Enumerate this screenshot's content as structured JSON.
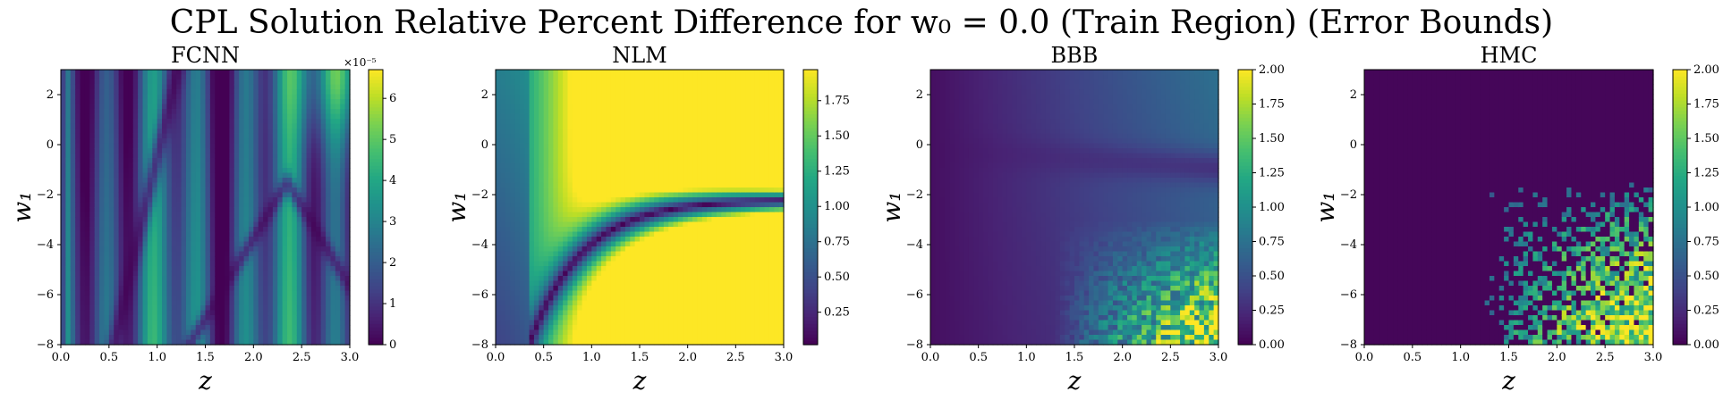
{
  "suptitle": {
    "text": "CPL Solution Relative Percent Difference for w₀ = 0.0 (Train Region) (Error Bounds)"
  },
  "chart_data": [
    {
      "type": "heatmap",
      "title": "FCNN",
      "xlabel": "z",
      "ylabel": "w₁",
      "xlim": [
        0.0,
        3.0
      ],
      "ylim": [
        -8,
        3
      ],
      "x_ticks": [
        "0.0",
        "0.5",
        "1.0",
        "1.5",
        "2.0",
        "2.5",
        "3.0"
      ],
      "y_ticks": [
        "−8",
        "−6",
        "−4",
        "−2",
        "0",
        "2"
      ],
      "colormap": "viridis",
      "colorbar": {
        "min": 0,
        "max": 6.7e-05,
        "multiplier_label": "×10⁻⁵",
        "tick_values": [
          0,
          1e-05,
          2e-05,
          3e-05,
          4e-05,
          5e-05,
          6e-05
        ],
        "tick_labels": [
          "0",
          "1",
          "2",
          "3",
          "4",
          "5",
          "6"
        ]
      },
      "pattern": "vertical stripes with low-valued curved valleys; maximum near z=3, w1=3"
    },
    {
      "type": "heatmap",
      "title": "NLM",
      "xlabel": "z",
      "ylabel": "w₁",
      "xlim": [
        0.0,
        3.0
      ],
      "ylim": [
        -8,
        3
      ],
      "x_ticks": [
        "0.0",
        "0.5",
        "1.0",
        "1.5",
        "2.0",
        "2.5",
        "3.0"
      ],
      "y_ticks": [
        "−8",
        "−6",
        "−4",
        "−2",
        "0",
        "2"
      ],
      "colormap": "viridis",
      "colorbar": {
        "min": 0.02,
        "max": 1.97,
        "tick_values": [
          0.25,
          0.5,
          0.75,
          1.0,
          1.25,
          1.5,
          1.75
        ],
        "tick_labels": [
          "0.25",
          "0.50",
          "0.75",
          "1.00",
          "1.25",
          "1.50",
          "1.75"
        ]
      },
      "pattern": "low-valued valley curve from (0.4, -8) approaching w1=-2.2 at large z; saturated yellow elsewhere for z>1"
    },
    {
      "type": "heatmap",
      "title": "BBB",
      "xlabel": "z",
      "ylabel": "w₁",
      "xlim": [
        0.0,
        3.0
      ],
      "ylim": [
        -8,
        3
      ],
      "x_ticks": [
        "0.0",
        "0.5",
        "1.0",
        "1.5",
        "2.0",
        "2.5",
        "3.0"
      ],
      "y_ticks": [
        "−8",
        "−6",
        "−4",
        "−2",
        "0",
        "2"
      ],
      "colormap": "viridis",
      "colorbar": {
        "min": 0.0,
        "max": 2.0,
        "tick_values": [
          0.0,
          0.25,
          0.5,
          0.75,
          1.0,
          1.25,
          1.5,
          1.75,
          2.0
        ],
        "tick_labels": [
          "0.00",
          "0.25",
          "0.50",
          "0.75",
          "1.00",
          "1.25",
          "1.50",
          "1.75",
          "2.00"
        ]
      },
      "pattern": "smooth low values near z=0; noisy high values in lower-right corner (z>1.5, w1<-4)"
    },
    {
      "type": "heatmap",
      "title": "HMC",
      "xlabel": "z",
      "ylabel": "w₁",
      "xlim": [
        0.0,
        3.0
      ],
      "ylim": [
        -8,
        3
      ],
      "x_ticks": [
        "0.0",
        "0.5",
        "1.0",
        "1.5",
        "2.0",
        "2.5",
        "3.0"
      ],
      "y_ticks": [
        "−8",
        "−6",
        "−4",
        "−2",
        "0",
        "2"
      ],
      "colormap": "viridis",
      "colorbar": {
        "min": 0.0,
        "max": 2.0,
        "tick_values": [
          0.0,
          0.25,
          0.5,
          0.75,
          1.0,
          1.25,
          1.5,
          1.75,
          2.0
        ],
        "tick_labels": [
          "0.00",
          "0.25",
          "0.50",
          "0.75",
          "1.00",
          "1.25",
          "1.50",
          "1.75",
          "2.00"
        ]
      },
      "pattern": "near-zero almost everywhere; speckled high values in lower-right corner (z>1.3, w1<-2)"
    }
  ]
}
